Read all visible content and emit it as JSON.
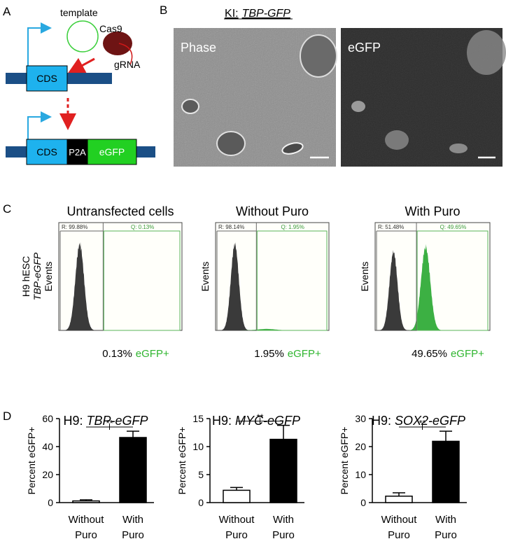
{
  "panel_labels": [
    "A",
    "B",
    "C",
    "D"
  ],
  "diagram": {
    "template": "template",
    "cas9": "Cas9",
    "grna": "gRNA",
    "cds_top": "CDS",
    "cds_bottom": "CDS",
    "p2a": "P2A",
    "egfp": "eGFP"
  },
  "microscopy": {
    "title_prefix": "KI:",
    "title_gene": "TBP-GFP",
    "images": [
      "Phase",
      "eGFP"
    ]
  },
  "flow": {
    "y_label": [
      "H9 hESC",
      "TBP-eGFP"
    ],
    "axis_label": "Events",
    "panels": [
      {
        "title": "Untransfected cells",
        "r_gate": "R: 99.88%",
        "q_gate": "Q: 0.13%",
        "percent": "0.13%",
        "positive": "eGFP+"
      },
      {
        "title": "Without Puro",
        "r_gate": "R: 98.14%",
        "q_gate": "Q: 1.95%",
        "percent": "1.95%",
        "positive": "eGFP+"
      },
      {
        "title": "With Puro",
        "r_gate": "R: 51.48%",
        "q_gate": "Q: 49.65%",
        "percent": "49.65%",
        "positive": "eGFP+"
      }
    ]
  },
  "chart_data": [
    {
      "type": "bar",
      "title": [
        "H9:",
        "TBP-eGFP"
      ],
      "y_label": "Percent eGFP+",
      "categories": [
        [
          "Without",
          "Puro"
        ],
        [
          "With",
          "Puro"
        ]
      ],
      "values": [
        1.2,
        46.5
      ],
      "errors": [
        0.8,
        4.5
      ],
      "colors": [
        "#ffffff",
        "#000000"
      ],
      "ylim": [
        0,
        60
      ],
      "yticks": [
        0,
        20,
        40,
        60
      ],
      "annotation": "**"
    },
    {
      "type": "bar",
      "title": [
        "H9:",
        "MYC-eGFP"
      ],
      "y_label": "Percent eGFP+",
      "categories": [
        [
          "Without",
          "Puro"
        ],
        [
          "With",
          "Puro"
        ]
      ],
      "values": [
        2.2,
        11.3
      ],
      "errors": [
        0.5,
        2.5
      ],
      "colors": [
        "#ffffff",
        "#000000"
      ],
      "ylim": [
        0,
        15
      ],
      "yticks": [
        0,
        5,
        10,
        15
      ],
      "annotation": "**"
    },
    {
      "type": "bar",
      "title": [
        "H9:",
        "SOX2-eGFP"
      ],
      "y_label": "Percent eGFP+",
      "categories": [
        [
          "Without",
          "Puro"
        ],
        [
          "With",
          "Puro"
        ]
      ],
      "values": [
        2.3,
        21.9
      ],
      "errors": [
        1.2,
        3.6
      ],
      "colors": [
        "#ffffff",
        "#000000"
      ],
      "ylim": [
        0,
        30
      ],
      "yticks": [
        0,
        10,
        20,
        30
      ],
      "annotation": "**"
    }
  ]
}
